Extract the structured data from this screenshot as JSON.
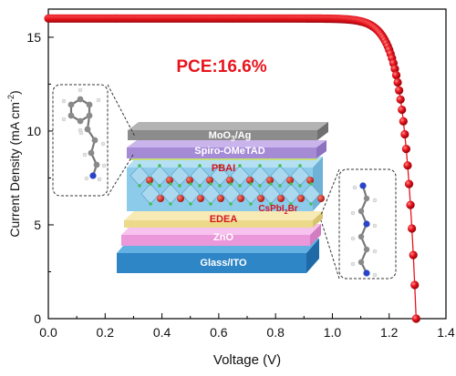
{
  "chart_data": {
    "type": "scatter",
    "xlabel": "Voltage (V)",
    "ylabel_main": "Current Density (mA cm",
    "ylabel_sup": "-2",
    "ylabel_close": ")",
    "xlim": [
      0.0,
      1.4
    ],
    "ylim": [
      0,
      16.5
    ],
    "x_ticks": [
      0.0,
      0.2,
      0.4,
      0.6,
      0.8,
      1.0,
      1.2,
      1.4
    ],
    "x_tick_labels": [
      "0.0",
      "0.2",
      "0.4",
      "0.6",
      "0.8",
      "1.0",
      "1.2",
      "1.4"
    ],
    "y_ticks": [
      0,
      5,
      10,
      15
    ],
    "y_tick_labels": [
      "0",
      "5",
      "10",
      "15"
    ],
    "grid": false,
    "annotation": "PCE:16.6%",
    "series": [
      {
        "marker_color": "#e8141c",
        "curve": {
          "jsc": 16.0,
          "voc": 1.295,
          "n_vt": 0.042,
          "v_step": 0.005
        },
        "x": [],
        "y": []
      }
    ]
  },
  "device_stack": {
    "layers": [
      {
        "label": "MoO3/Ag",
        "label_main": "MoO",
        "label_sub": "3",
        "label_rest": "/Ag",
        "color": "#8a8a8a"
      },
      {
        "label": "Spiro-OMeTAD",
        "color": "#a98fd6"
      },
      {
        "label": "PBAI",
        "color": "#c9e67a"
      },
      {
        "label": "CsPbI2Br",
        "label_main": "CsPbI",
        "label_sub": "2",
        "label_rest": "Br",
        "color": "#7ec8e8"
      },
      {
        "label": "EDEA",
        "color": "#f0e29a"
      },
      {
        "label": "ZnO",
        "color": "#f0a6e0"
      },
      {
        "label": "Glass/ITO",
        "color": "#3a8fcf"
      }
    ]
  }
}
